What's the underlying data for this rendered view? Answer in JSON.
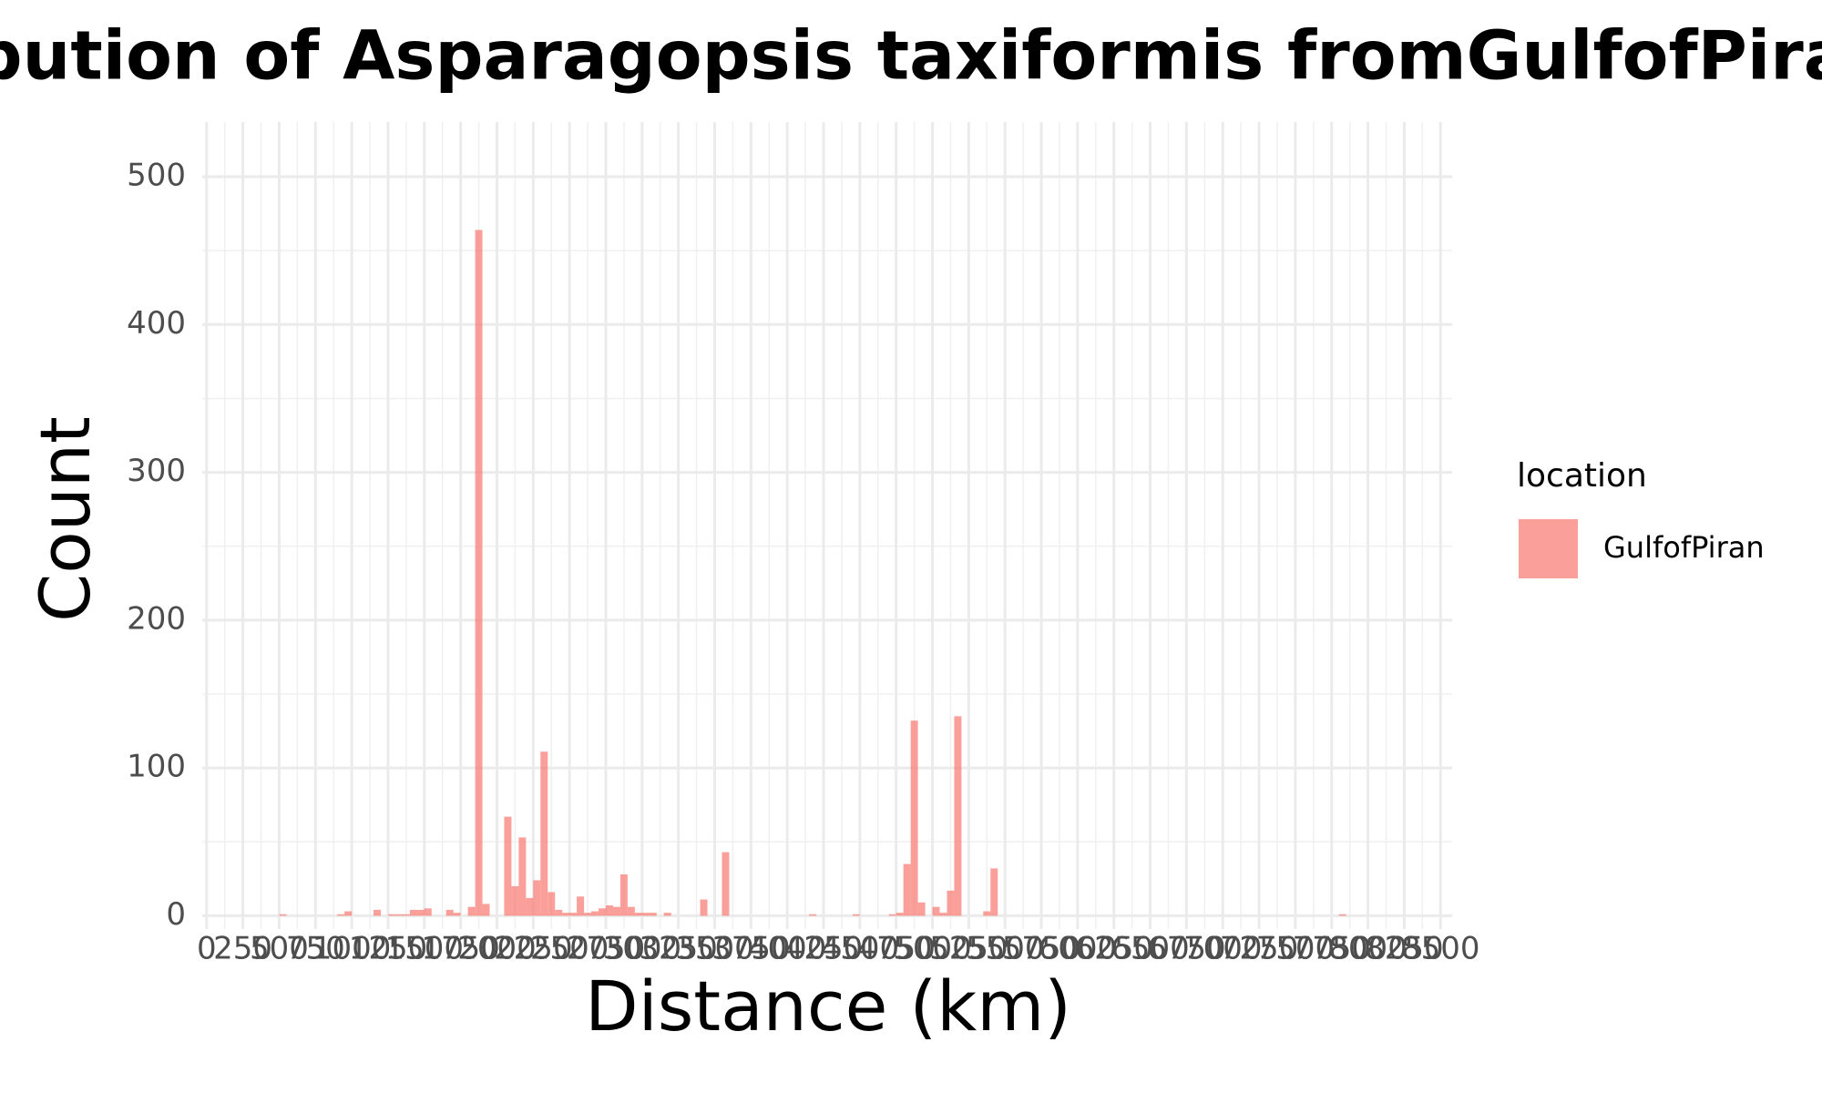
{
  "chart_data": {
    "type": "histogram",
    "title": "Distribution of Asparagopsis taxiformis fromGulfofPiran",
    "x_label": "Distance (km)",
    "y_label": "Count",
    "legend_title": "location",
    "legend_position": "right",
    "bins": [
      0,
      50,
      100,
      150,
      200,
      250,
      300,
      350,
      400,
      450,
      500,
      550,
      600,
      650,
      700,
      750,
      800,
      850,
      900,
      950,
      1000,
      1050,
      1100,
      1150,
      1200,
      1250,
      1300,
      1350,
      1400,
      1450,
      1500,
      1550,
      1600,
      1650,
      1700,
      1750,
      1800,
      1850,
      1900,
      1950,
      2000,
      2050,
      2100,
      2150,
      2200,
      2250,
      2300,
      2350,
      2400,
      2450,
      2500,
      2550,
      2600,
      2650,
      2700,
      2750,
      2800,
      2850,
      2900,
      2950,
      3000,
      3050,
      3100,
      3150,
      3200,
      3250,
      3300,
      3350,
      3400,
      3450,
      3500,
      3550,
      3600,
      3650,
      3700,
      3750,
      3800,
      3850,
      3900,
      3950,
      4000,
      4050,
      4100,
      4150,
      4200,
      4250,
      4300,
      4350,
      4400,
      4450,
      4500,
      4550,
      4600,
      4650,
      4700,
      4750,
      4800,
      4850,
      4900,
      4950,
      5000,
      5050,
      5100,
      5150,
      5200,
      5250,
      5300,
      5350,
      5400,
      5450,
      5500,
      5550,
      5600,
      5650,
      5700,
      5750,
      5800,
      5850,
      5900,
      5950,
      6000,
      6050,
      6100,
      6150,
      6200,
      6250,
      6300,
      6350,
      6400,
      6450,
      6500,
      6550,
      6600,
      6650,
      6700,
      6750,
      6800,
      6850,
      6900,
      6950,
      7000,
      7050,
      7100,
      7150,
      7200,
      7250,
      7300,
      7350,
      7400,
      7450,
      7500,
      7550,
      7600,
      7650,
      7700,
      7750,
      7800,
      7850,
      7900,
      7950,
      8000,
      8050,
      8100,
      8150,
      8200,
      8250,
      8300,
      8350,
      8400,
      8450,
      8500
    ],
    "series": [
      {
        "name": "GulfofPiran",
        "color": "#F8766D",
        "opacity": 0.7,
        "values": [
          0,
          0,
          0,
          0,
          0,
          0,
          0,
          0,
          0,
          0,
          1,
          0,
          0,
          0,
          0,
          0,
          0,
          0,
          1,
          3,
          0,
          0,
          0,
          4,
          0,
          1,
          1,
          1,
          4,
          4,
          5,
          0,
          0,
          4,
          2,
          0,
          6,
          464,
          8,
          0,
          0,
          67,
          20,
          53,
          12,
          24,
          111,
          16,
          4,
          2,
          2,
          13,
          2,
          3,
          5,
          7,
          6,
          28,
          6,
          2,
          2,
          2,
          0,
          2,
          0,
          0,
          0,
          0,
          11,
          0,
          0,
          43,
          0,
          0,
          0,
          0,
          0,
          0,
          0,
          0,
          0,
          0,
          0,
          1,
          0,
          0,
          0,
          0,
          0,
          1,
          0,
          0,
          0,
          0,
          1,
          2,
          35,
          132,
          9,
          0,
          6,
          2,
          17,
          135,
          0,
          0,
          0,
          3,
          32,
          0,
          0,
          0,
          0,
          0,
          0,
          0,
          0,
          0,
          0,
          0,
          0,
          0,
          0,
          0,
          0,
          0,
          0,
          0,
          0,
          0,
          0,
          0,
          0,
          0,
          0,
          0,
          0,
          0,
          0,
          0,
          0,
          0,
          0,
          0,
          0,
          0,
          0,
          0,
          0,
          0,
          0,
          0,
          0,
          0,
          0,
          0,
          1,
          0,
          0,
          0,
          0,
          0,
          0,
          0,
          0,
          0,
          0,
          0,
          0,
          0
        ]
      }
    ],
    "xlim": [
      -30,
      8580
    ],
    "ylim": [
      -9,
      537
    ],
    "xticks": [
      0,
      250,
      500,
      750,
      1000,
      1250,
      1500,
      1750,
      2000,
      2250,
      2500,
      2750,
      3000,
      3250,
      3500,
      3750,
      4000,
      4250,
      4500,
      4750,
      5000,
      5250,
      5500,
      5750,
      6000,
      6250,
      6500,
      6750,
      7000,
      7250,
      7500,
      7750,
      8000,
      8250,
      8500
    ],
    "yticks": [
      0,
      100,
      200,
      300,
      400,
      500
    ],
    "grid": true
  }
}
